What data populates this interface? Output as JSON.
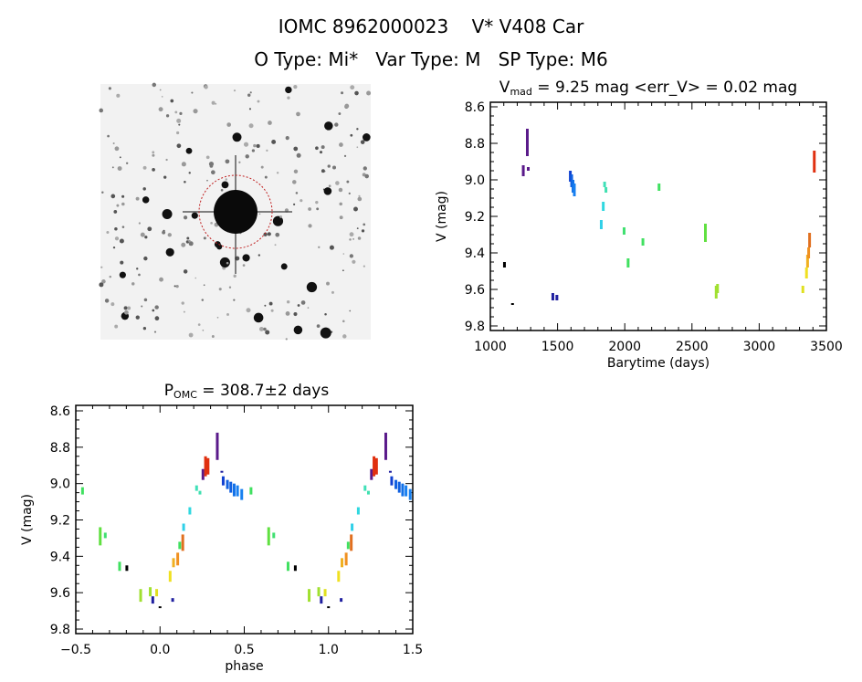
{
  "header": {
    "line1": "IOMC 8962000023    V* V408 Car",
    "line2": "O Type: Mi*   Var Type: M   SP Type: M6"
  },
  "image_cutout": {
    "description_visible": "sky image with target circle",
    "circle_color": "#c02020"
  },
  "chart_data": [
    {
      "type": "scatter",
      "title": {
        "main": "V",
        "sub": "mad",
        "rest": " = 9.25 mag <err_V> = 0.02 mag"
      },
      "xlabel": "Barytime (days)",
      "ylabel": "V (mag)",
      "xlim": [
        1000,
        3500
      ],
      "ylim": [
        9.8,
        8.6
      ],
      "y_inverted": true,
      "xticks": [
        "1000",
        "1500",
        "2000",
        "2500",
        "3000",
        "3500"
      ],
      "yticks": [
        "8.6",
        "8.8",
        "9.0",
        "9.2",
        "9.4",
        "9.6",
        "9.8"
      ],
      "grid": false,
      "segments": [
        {
          "x": 1105,
          "vmin": 9.45,
          "vmax": 9.48,
          "color": "#000000"
        },
        {
          "x": 1165,
          "vmin": 9.675,
          "vmax": 9.685,
          "color": "#000000"
        },
        {
          "x": 1245,
          "vmin": 8.92,
          "vmax": 8.98,
          "color": "#5a1a8a"
        },
        {
          "x": 1275,
          "vmin": 8.72,
          "vmax": 8.87,
          "color": "#5a1a8a"
        },
        {
          "x": 1282,
          "vmin": 8.93,
          "vmax": 8.95,
          "color": "#5a1a8a"
        },
        {
          "x": 1465,
          "vmin": 9.62,
          "vmax": 9.66,
          "color": "#2020a0"
        },
        {
          "x": 1495,
          "vmin": 9.63,
          "vmax": 9.66,
          "color": "#2020a0"
        },
        {
          "x": 1595,
          "vmin": 8.95,
          "vmax": 9.01,
          "color": "#1040d0"
        },
        {
          "x": 1605,
          "vmin": 8.97,
          "vmax": 9.04,
          "color": "#1060e0"
        },
        {
          "x": 1615,
          "vmin": 9.0,
          "vmax": 9.07,
          "color": "#1070e8"
        },
        {
          "x": 1625,
          "vmin": 9.02,
          "vmax": 9.09,
          "color": "#1880f0"
        },
        {
          "x": 1825,
          "vmin": 9.22,
          "vmax": 9.27,
          "color": "#30d0e8"
        },
        {
          "x": 1840,
          "vmin": 9.12,
          "vmax": 9.17,
          "color": "#30d8e0"
        },
        {
          "x": 1850,
          "vmin": 9.01,
          "vmax": 9.04,
          "color": "#40e0b8"
        },
        {
          "x": 1860,
          "vmin": 9.04,
          "vmax": 9.07,
          "color": "#40e0b0"
        },
        {
          "x": 1995,
          "vmin": 9.26,
          "vmax": 9.3,
          "color": "#40e070"
        },
        {
          "x": 2025,
          "vmin": 9.43,
          "vmax": 9.48,
          "color": "#40e060"
        },
        {
          "x": 2135,
          "vmin": 9.32,
          "vmax": 9.36,
          "color": "#40e060"
        },
        {
          "x": 2255,
          "vmin": 9.02,
          "vmax": 9.06,
          "color": "#40e060"
        },
        {
          "x": 2600,
          "vmin": 9.24,
          "vmax": 9.34,
          "color": "#60e040"
        },
        {
          "x": 2680,
          "vmin": 9.58,
          "vmax": 9.65,
          "color": "#a0e030"
        },
        {
          "x": 2690,
          "vmin": 9.57,
          "vmax": 9.62,
          "color": "#a0e030"
        },
        {
          "x": 3325,
          "vmin": 9.58,
          "vmax": 9.62,
          "color": "#e0e020"
        },
        {
          "x": 3352,
          "vmin": 9.48,
          "vmax": 9.54,
          "color": "#f0e020"
        },
        {
          "x": 3360,
          "vmin": 9.41,
          "vmax": 9.48,
          "color": "#f0b020"
        },
        {
          "x": 3368,
          "vmin": 9.37,
          "vmax": 9.43,
          "color": "#f09020"
        },
        {
          "x": 3375,
          "vmin": 9.29,
          "vmax": 9.37,
          "color": "#e07020"
        },
        {
          "x": 3410,
          "vmin": 8.84,
          "vmax": 8.96,
          "color": "#e03010"
        }
      ]
    },
    {
      "type": "scatter",
      "title": {
        "main": "P",
        "sub": "OMC",
        "rest": " = 308.7±2 days"
      },
      "xlabel": "phase",
      "ylabel": "V (mag)",
      "xlim": [
        -0.5,
        1.5
      ],
      "ylim": [
        9.8,
        8.6
      ],
      "y_inverted": true,
      "xticks": [
        "-0.5",
        "0.0",
        "0.5",
        "1.0",
        "1.5"
      ],
      "yticks": [
        "8.6",
        "8.8",
        "9.0",
        "9.2",
        "9.4",
        "9.6",
        "9.8"
      ],
      "grid": false,
      "repeat_period": 1,
      "segments": [
        {
          "x": 0.54,
          "vmin": 9.02,
          "vmax": 9.06,
          "color": "#40e060"
        },
        {
          "x": 0.645,
          "vmin": 9.24,
          "vmax": 9.34,
          "color": "#60e040"
        },
        {
          "x": 0.675,
          "vmin": 9.27,
          "vmax": 9.3,
          "color": "#40e070"
        },
        {
          "x": 0.76,
          "vmin": 9.43,
          "vmax": 9.48,
          "color": "#40e060"
        },
        {
          "x": 0.803,
          "vmin": 9.45,
          "vmax": 9.48,
          "color": "#000000"
        },
        {
          "x": 0.885,
          "vmin": 9.58,
          "vmax": 9.65,
          "color": "#a0e030"
        },
        {
          "x": 0.942,
          "vmin": 9.57,
          "vmax": 9.62,
          "color": "#a0e030"
        },
        {
          "x": 0.957,
          "vmin": 9.62,
          "vmax": 9.66,
          "color": "#2020a0"
        },
        {
          "x": 0.98,
          "vmin": 9.58,
          "vmax": 9.62,
          "color": "#e0e020"
        },
        {
          "x": 1.0,
          "vmin": 9.675,
          "vmax": 9.685,
          "color": "#000000"
        },
        {
          "x": 0.06,
          "vmin": 9.48,
          "vmax": 9.54,
          "color": "#f0e020"
        },
        {
          "x": 0.075,
          "vmin": 9.63,
          "vmax": 9.65,
          "color": "#2020a0"
        },
        {
          "x": 0.08,
          "vmin": 9.41,
          "vmax": 9.46,
          "color": "#f0b020"
        },
        {
          "x": 0.105,
          "vmin": 9.38,
          "vmax": 9.45,
          "color": "#f09020"
        },
        {
          "x": 0.117,
          "vmin": 9.32,
          "vmax": 9.36,
          "color": "#40e060"
        },
        {
          "x": 0.135,
          "vmin": 9.28,
          "vmax": 9.37,
          "color": "#e07020"
        },
        {
          "x": 0.14,
          "vmin": 9.22,
          "vmax": 9.26,
          "color": "#30d0e8"
        },
        {
          "x": 0.177,
          "vmin": 9.13,
          "vmax": 9.17,
          "color": "#30d8e0"
        },
        {
          "x": 0.217,
          "vmin": 9.01,
          "vmax": 9.04,
          "color": "#40e0b8"
        },
        {
          "x": 0.237,
          "vmin": 9.04,
          "vmax": 9.06,
          "color": "#40e0b0"
        },
        {
          "x": 0.255,
          "vmin": 8.92,
          "vmax": 8.98,
          "color": "#5a1a8a"
        },
        {
          "x": 0.27,
          "vmin": 8.85,
          "vmax": 8.96,
          "color": "#e03010"
        },
        {
          "x": 0.285,
          "vmin": 8.86,
          "vmax": 8.95,
          "color": "#e03010"
        },
        {
          "x": 0.34,
          "vmin": 8.72,
          "vmax": 8.87,
          "color": "#5a1a8a"
        },
        {
          "x": 0.367,
          "vmin": 8.93,
          "vmax": 8.94,
          "color": "#2020a0"
        },
        {
          "x": 0.375,
          "vmin": 8.96,
          "vmax": 9.01,
          "color": "#1040d0"
        },
        {
          "x": 0.4,
          "vmin": 8.98,
          "vmax": 9.03,
          "color": "#1060e0"
        },
        {
          "x": 0.42,
          "vmin": 8.99,
          "vmax": 9.05,
          "color": "#1060e0"
        },
        {
          "x": 0.44,
          "vmin": 9.0,
          "vmax": 9.07,
          "color": "#1070e8"
        },
        {
          "x": 0.46,
          "vmin": 9.01,
          "vmax": 9.07,
          "color": "#1880f0"
        },
        {
          "x": 0.485,
          "vmin": 9.03,
          "vmax": 9.09,
          "color": "#1880f0"
        }
      ]
    }
  ]
}
